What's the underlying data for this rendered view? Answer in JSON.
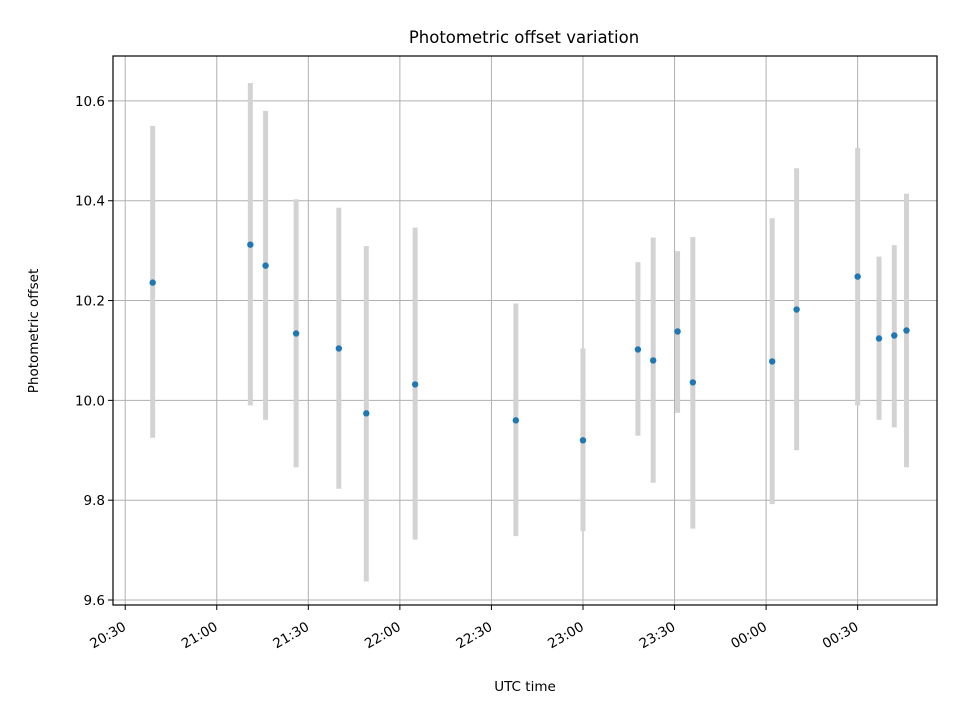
{
  "chart_data": {
    "type": "scatter",
    "title": "Photometric offset variation",
    "xlabel": "UTC time",
    "ylabel": "Photometric offset",
    "x_axis_kind": "time",
    "x_tick_labels": [
      "20:30",
      "21:00",
      "21:30",
      "22:00",
      "22:30",
      "23:00",
      "23:30",
      "00:00",
      "00:30"
    ],
    "x_tick_values_min": [
      0,
      30,
      60,
      90,
      120,
      150,
      180,
      210,
      240
    ],
    "x_range_min": [
      -4,
      266
    ],
    "y_ticks": [
      9.6,
      9.8,
      10.0,
      10.2,
      10.4,
      10.6
    ],
    "y_tick_labels": [
      "9.6",
      "9.8",
      "10.0",
      "10.2",
      "10.4",
      "10.6"
    ],
    "ylim": [
      9.59,
      10.69
    ],
    "grid": true,
    "legend": false,
    "colors": {
      "marker": "#1f77b4",
      "errorbar": "#d3d3d3",
      "grid": "#b0b0b0"
    },
    "points": [
      {
        "time": "20:39",
        "y": 10.236,
        "y_low": 9.925,
        "y_high": 10.55
      },
      {
        "time": "21:11",
        "y": 10.312,
        "y_low": 9.99,
        "y_high": 10.636
      },
      {
        "time": "21:16",
        "y": 10.27,
        "y_low": 9.961,
        "y_high": 10.58
      },
      {
        "time": "21:26",
        "y": 10.134,
        "y_low": 9.866,
        "y_high": 10.403
      },
      {
        "time": "21:40",
        "y": 10.104,
        "y_low": 9.823,
        "y_high": 10.386
      },
      {
        "time": "21:49",
        "y": 9.974,
        "y_low": 9.637,
        "y_high": 10.309
      },
      {
        "time": "22:05",
        "y": 10.032,
        "y_low": 9.721,
        "y_high": 10.346
      },
      {
        "time": "22:38",
        "y": 9.96,
        "y_low": 9.728,
        "y_high": 10.194
      },
      {
        "time": "23:00",
        "y": 9.92,
        "y_low": 9.738,
        "y_high": 10.104
      },
      {
        "time": "23:18",
        "y": 10.102,
        "y_low": 9.929,
        "y_high": 10.277
      },
      {
        "time": "23:23",
        "y": 10.08,
        "y_low": 9.835,
        "y_high": 10.326
      },
      {
        "time": "23:31",
        "y": 10.138,
        "y_low": 9.975,
        "y_high": 10.299
      },
      {
        "time": "23:36",
        "y": 10.036,
        "y_low": 9.743,
        "y_high": 10.327
      },
      {
        "time": "00:02",
        "y": 10.078,
        "y_low": 9.792,
        "y_high": 10.365
      },
      {
        "time": "00:10",
        "y": 10.182,
        "y_low": 9.9,
        "y_high": 10.465
      },
      {
        "time": "00:30",
        "y": 10.248,
        "y_low": 9.99,
        "y_high": 10.506
      },
      {
        "time": "00:37",
        "y": 10.124,
        "y_low": 9.961,
        "y_high": 10.288
      },
      {
        "time": "00:42",
        "y": 10.13,
        "y_low": 9.946,
        "y_high": 10.311
      },
      {
        "time": "00:46",
        "y": 10.14,
        "y_low": 9.866,
        "y_high": 10.414
      }
    ]
  }
}
